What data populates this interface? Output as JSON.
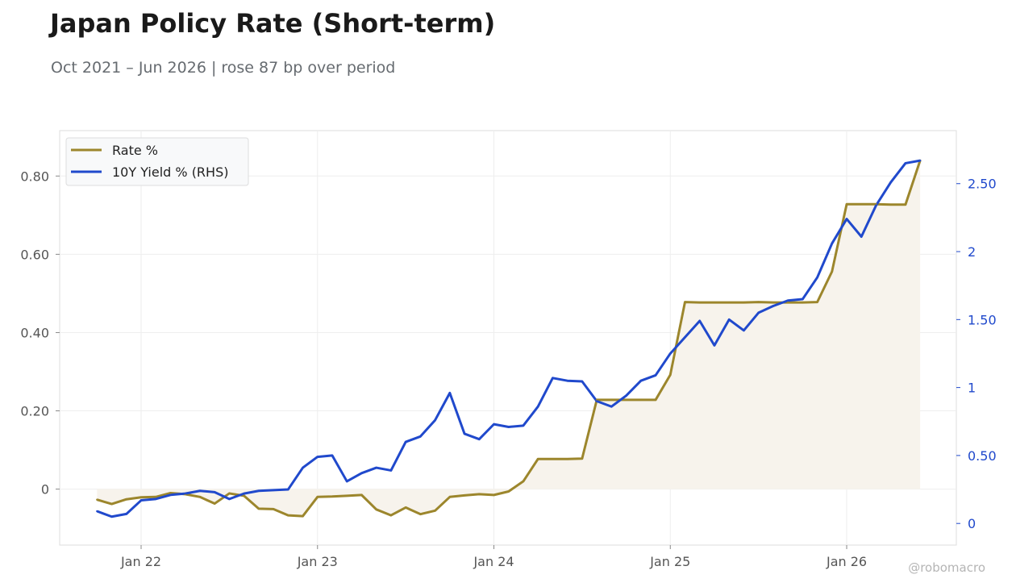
{
  "header": {
    "title": "Japan Policy Rate (Short-term)",
    "subtitle": "Oct 2021 – Jun 2026 | rose 87 bp over period"
  },
  "footer": {
    "credit": "@robomacro"
  },
  "colors": {
    "rate": "#9c862c",
    "yield": "#2049cc",
    "fill": "#f7f3ec",
    "grid": "#eeeeee",
    "frame": "#dddddd",
    "left_tick": "#555555",
    "right_tick": "#2049cc"
  },
  "chart_data": {
    "type": "line",
    "title": "Japan Policy Rate (Short-term)",
    "subtitle": "Oct 2021 – Jun 2026 | rose 87 bp over period",
    "xlabel": "",
    "ylabel": "",
    "grid": true,
    "legend_position": "top-left",
    "x": [
      "2021-10",
      "2021-11",
      "2021-12",
      "2022-01",
      "2022-02",
      "2022-03",
      "2022-04",
      "2022-05",
      "2022-06",
      "2022-07",
      "2022-08",
      "2022-09",
      "2022-10",
      "2022-11",
      "2022-12",
      "2023-01",
      "2023-02",
      "2023-03",
      "2023-04",
      "2023-05",
      "2023-06",
      "2023-07",
      "2023-08",
      "2023-09",
      "2023-10",
      "2023-11",
      "2023-12",
      "2024-01",
      "2024-02",
      "2024-03",
      "2024-04",
      "2024-05",
      "2024-06",
      "2024-07",
      "2024-08",
      "2024-09",
      "2024-10",
      "2024-11",
      "2024-12",
      "2025-01",
      "2025-02",
      "2025-03",
      "2025-04",
      "2025-05",
      "2025-06",
      "2025-07",
      "2025-08",
      "2025-09",
      "2025-10",
      "2025-11",
      "2025-12",
      "2026-01",
      "2026-02",
      "2026-03",
      "2026-04",
      "2026-05",
      "2026-06"
    ],
    "xlim": [
      "2021-07-15",
      "2026-08-15"
    ],
    "x_ticks": [
      "2022-01",
      "2023-01",
      "2024-01",
      "2025-01",
      "2026-01"
    ],
    "x_tick_labels": [
      "Jan 22",
      "Jan 23",
      "Jan 24",
      "Jan 25",
      "Jan 26"
    ],
    "series": [
      {
        "name": "Rate %",
        "axis": "left",
        "fill_to_zero": true,
        "values": [
          -0.027,
          -0.038,
          -0.026,
          -0.021,
          -0.02,
          -0.01,
          -0.013,
          -0.02,
          -0.037,
          -0.011,
          -0.017,
          -0.05,
          -0.051,
          -0.067,
          -0.069,
          -0.02,
          -0.019,
          -0.017,
          -0.015,
          -0.052,
          -0.067,
          -0.047,
          -0.064,
          -0.055,
          -0.02,
          -0.016,
          -0.013,
          -0.015,
          -0.006,
          0.02,
          0.077,
          0.077,
          0.077,
          0.078,
          0.228,
          0.228,
          0.228,
          0.228,
          0.228,
          0.292,
          0.478,
          0.477,
          0.477,
          0.477,
          0.477,
          0.478,
          0.477,
          0.477,
          0.477,
          0.478,
          0.556,
          0.728,
          0.728,
          0.728,
          0.727,
          0.727,
          0.84
        ]
      },
      {
        "name": "10Y Yield % (RHS)",
        "axis": "right",
        "values": [
          0.09,
          0.05,
          0.07,
          0.17,
          0.18,
          0.21,
          0.22,
          0.24,
          0.23,
          0.18,
          0.22,
          0.24,
          0.245,
          0.25,
          0.41,
          0.49,
          0.5,
          0.31,
          0.37,
          0.41,
          0.39,
          0.6,
          0.64,
          0.76,
          0.96,
          0.66,
          0.62,
          0.73,
          0.71,
          0.72,
          0.86,
          1.07,
          1.05,
          1.045,
          0.9,
          0.86,
          0.94,
          1.05,
          1.09,
          1.25,
          1.37,
          1.49,
          1.31,
          1.5,
          1.42,
          1.55,
          1.6,
          1.64,
          1.65,
          1.81,
          2.06,
          2.24,
          2.11,
          2.34,
          2.51,
          2.65,
          2.67
        ]
      }
    ],
    "y_left": {
      "ylim": [
        -0.143,
        0.916
      ],
      "ticks": [
        0,
        0.2,
        0.4,
        0.6,
        0.8
      ],
      "tick_labels": [
        "0",
        "0.20",
        "0.40",
        "0.60",
        "0.80"
      ]
    },
    "y_right": {
      "ylim": [
        -0.159,
        2.89
      ],
      "ticks": [
        0,
        0.5,
        1,
        1.5,
        2,
        2.5
      ],
      "tick_labels": [
        "0",
        "0.50",
        "1",
        "1.50",
        "2",
        "2.50"
      ]
    }
  }
}
